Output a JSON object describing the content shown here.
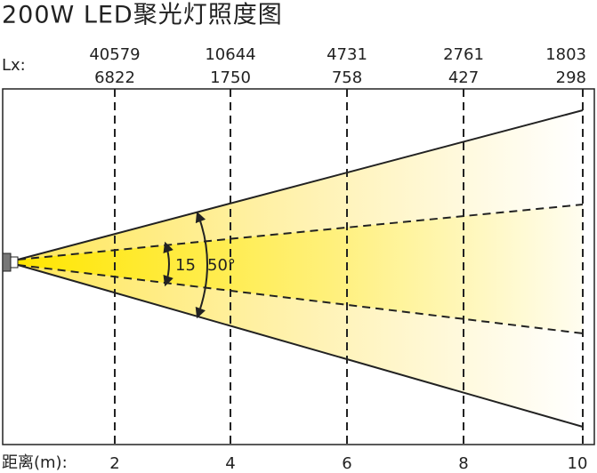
{
  "title": "200W  LED聚光灯照度图",
  "lux_label": "Lx:",
  "distance_label": "距离(m):",
  "angles": {
    "inner": "15",
    "outer": "50°"
  },
  "columns": [
    {
      "distance": 2,
      "lux_row1": 40579,
      "lux_row2": 6822
    },
    {
      "distance": 4,
      "lux_row1": 10644,
      "lux_row2": 1750
    },
    {
      "distance": 6,
      "lux_row1": 4731,
      "lux_row2": 758
    },
    {
      "distance": 8,
      "lux_row1": 2761,
      "lux_row2": 427
    },
    {
      "distance": 10,
      "lux_row1": 1803,
      "lux_row2": 298
    }
  ]
}
